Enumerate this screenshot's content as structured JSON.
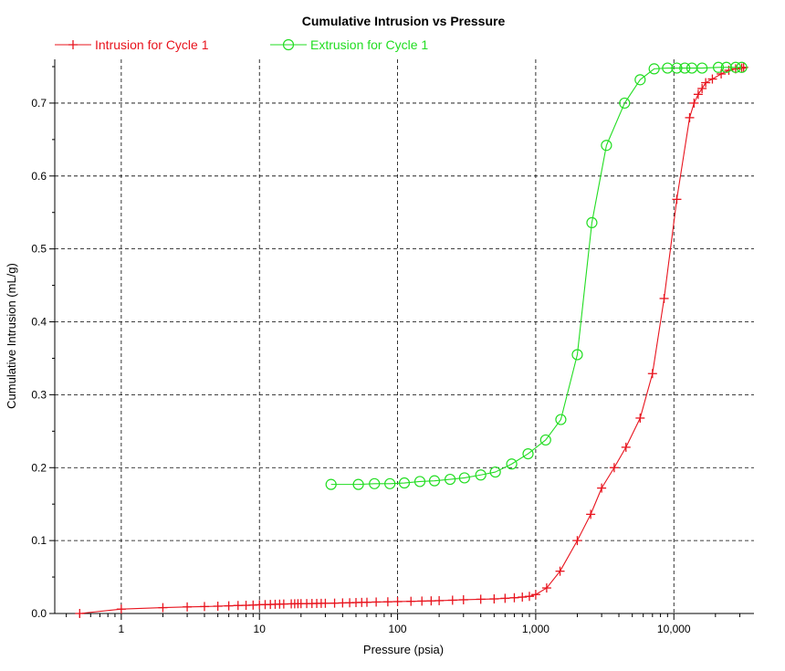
{
  "chart_data": {
    "type": "line",
    "title": "Cumulative Intrusion vs Pressure",
    "xlabel": "Pressure (psia)",
    "ylabel": "Cumulative Intrusion (mL/g)",
    "xscale": "log",
    "xlim": [
      0.33,
      38000
    ],
    "ylim": [
      0,
      0.76
    ],
    "xticks": [
      {
        "value": 1,
        "label": "1"
      },
      {
        "value": 10,
        "label": "10"
      },
      {
        "value": 100,
        "label": "100"
      },
      {
        "value": 1000,
        "label": "1,000"
      },
      {
        "value": 10000,
        "label": "10,000"
      }
    ],
    "yticks": [
      {
        "value": 0.0,
        "label": "0.0"
      },
      {
        "value": 0.1,
        "label": "0.1"
      },
      {
        "value": 0.2,
        "label": "0.2"
      },
      {
        "value": 0.3,
        "label": "0.3"
      },
      {
        "value": 0.4,
        "label": "0.4"
      },
      {
        "value": 0.5,
        "label": "0.5"
      },
      {
        "value": 0.6,
        "label": "0.6"
      },
      {
        "value": 0.7,
        "label": "0.7"
      }
    ],
    "grid": true,
    "legend_position": "top-left",
    "series": [
      {
        "name": "Intrusion for Cycle 1",
        "color": "#e8141e",
        "marker": "plus",
        "points": [
          [
            0.5,
            0.0
          ],
          [
            1.0,
            0.006
          ],
          [
            2.0,
            0.008
          ],
          [
            3.0,
            0.009
          ],
          [
            4.0,
            0.0095
          ],
          [
            5.0,
            0.01
          ],
          [
            6.0,
            0.0105
          ],
          [
            7.0,
            0.011
          ],
          [
            8.0,
            0.0112
          ],
          [
            9.0,
            0.0115
          ],
          [
            10.0,
            0.012
          ],
          [
            11.0,
            0.0122
          ],
          [
            12.0,
            0.0124
          ],
          [
            13.0,
            0.0126
          ],
          [
            14.0,
            0.0128
          ],
          [
            15.0,
            0.013
          ],
          [
            17.0,
            0.0132
          ],
          [
            18.0,
            0.0133
          ],
          [
            19.0,
            0.0134
          ],
          [
            20.0,
            0.0135
          ],
          [
            22.0,
            0.0136
          ],
          [
            24.0,
            0.0137
          ],
          [
            26.0,
            0.0138
          ],
          [
            28.0,
            0.0139
          ],
          [
            30.0,
            0.014
          ],
          [
            35.0,
            0.0142
          ],
          [
            40.0,
            0.0145
          ],
          [
            45.0,
            0.0147
          ],
          [
            50.0,
            0.015
          ],
          [
            55.0,
            0.0152
          ],
          [
            60.0,
            0.0154
          ],
          [
            70.0,
            0.0157
          ],
          [
            85.0,
            0.016
          ],
          [
            100.0,
            0.0163
          ],
          [
            125.0,
            0.0167
          ],
          [
            150.0,
            0.017
          ],
          [
            175.0,
            0.0173
          ],
          [
            200.0,
            0.0176
          ],
          [
            250.0,
            0.0182
          ],
          [
            300.0,
            0.0188
          ],
          [
            400.0,
            0.0195
          ],
          [
            500.0,
            0.02
          ],
          [
            600.0,
            0.0208
          ],
          [
            700.0,
            0.0216
          ],
          [
            800.0,
            0.0225
          ],
          [
            900.0,
            0.0235
          ],
          [
            1000.0,
            0.026
          ],
          [
            1200.0,
            0.035
          ],
          [
            1500.0,
            0.058
          ],
          [
            2000.0,
            0.1
          ],
          [
            2500.0,
            0.136
          ],
          [
            3000.0,
            0.172
          ],
          [
            3700.0,
            0.2
          ],
          [
            4500.0,
            0.228
          ],
          [
            5700.0,
            0.268
          ],
          [
            7000.0,
            0.329
          ],
          [
            8500.0,
            0.432
          ],
          [
            10500.0,
            0.568
          ],
          [
            13000.0,
            0.68
          ],
          [
            14000.0,
            0.7
          ],
          [
            15000.0,
            0.712
          ],
          [
            16000.0,
            0.72
          ],
          [
            17000.0,
            0.728
          ],
          [
            19000.0,
            0.733
          ],
          [
            22000.0,
            0.74
          ],
          [
            25000.0,
            0.745
          ],
          [
            28000.0,
            0.747
          ],
          [
            31000.0,
            0.748
          ],
          [
            32000.0,
            0.749
          ]
        ]
      },
      {
        "name": "Extrusion for Cycle 1",
        "color": "#22dd22",
        "marker": "circle",
        "points": [
          [
            33.0,
            0.177
          ],
          [
            52.0,
            0.177
          ],
          [
            68.0,
            0.178
          ],
          [
            88.0,
            0.178
          ],
          [
            112.0,
            0.179
          ],
          [
            145.0,
            0.181
          ],
          [
            185.0,
            0.182
          ],
          [
            240.0,
            0.184
          ],
          [
            305.0,
            0.186
          ],
          [
            400.0,
            0.19
          ],
          [
            510.0,
            0.194
          ],
          [
            670.0,
            0.205
          ],
          [
            880.0,
            0.219
          ],
          [
            1180.0,
            0.238
          ],
          [
            1520.0,
            0.266
          ],
          [
            2000.0,
            0.355
          ],
          [
            2550.0,
            0.536
          ],
          [
            3250.0,
            0.642
          ],
          [
            4400.0,
            0.7
          ],
          [
            5700.0,
            0.732
          ],
          [
            7200.0,
            0.747
          ],
          [
            9000.0,
            0.748
          ],
          [
            10500.0,
            0.748
          ],
          [
            12000.0,
            0.748
          ],
          [
            13500.0,
            0.748
          ],
          [
            16000.0,
            0.748
          ],
          [
            21000.0,
            0.749
          ],
          [
            24000.0,
            0.749
          ],
          [
            28000.0,
            0.749
          ],
          [
            31000.0,
            0.749
          ]
        ]
      }
    ]
  }
}
